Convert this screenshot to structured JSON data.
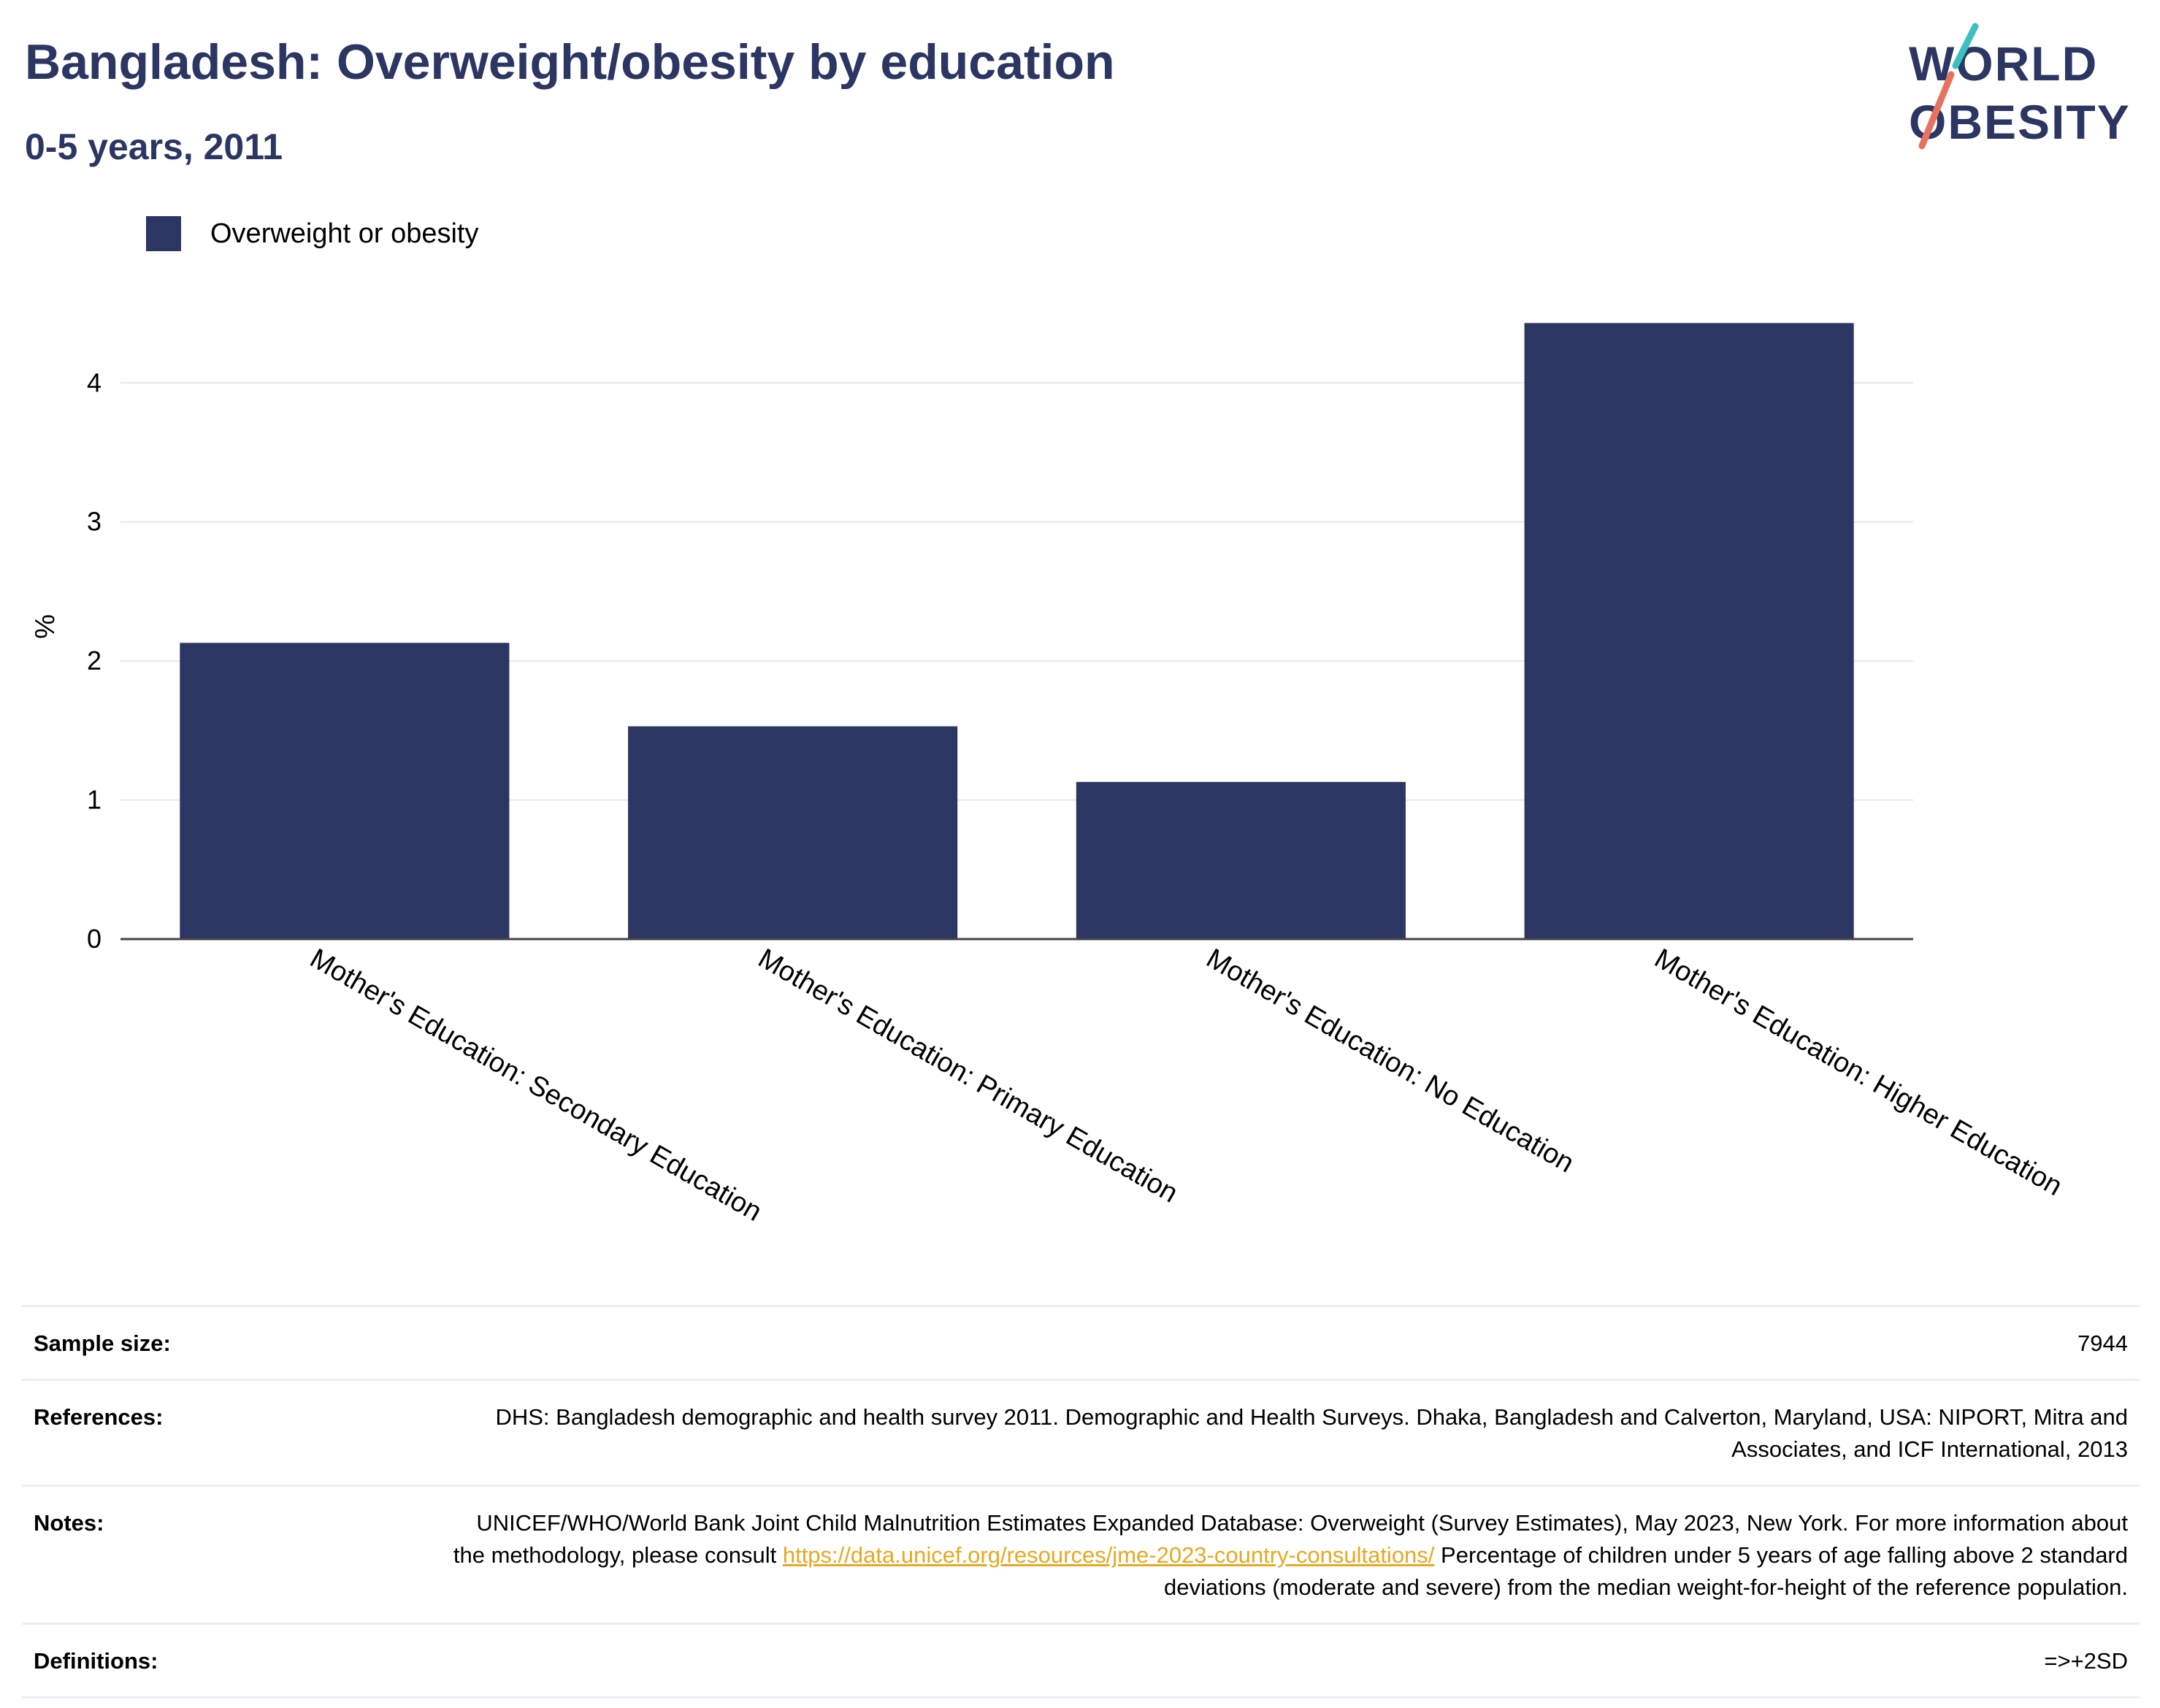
{
  "header": {
    "title": "Bangladesh: Overweight/obesity by education",
    "subtitle": "0-5 years, 2011"
  },
  "logo": {
    "line1": "WORLD",
    "line2": "OBESITY"
  },
  "colors": {
    "bar": "#2b3663",
    "title": "#2b3663",
    "grid": "#e6e6ef",
    "link": "#e8a820",
    "logo_teal": "#3cbfbf",
    "logo_coral": "#e8725f"
  },
  "chart_data": {
    "type": "bar",
    "categories": [
      "Mother's Education: Secondary Education",
      "Mother's Education: Primary Education",
      "Mother's Education: No Education",
      "Mother's Education: Higher Education"
    ],
    "series": [
      {
        "name": "Overweight or obesity",
        "values": [
          2.13,
          1.53,
          1.13,
          4.43
        ]
      }
    ],
    "ylabel": "%",
    "ylim": [
      0,
      4.6
    ],
    "yticks": [
      "0",
      "1",
      "2",
      "3",
      "4"
    ],
    "grid": true,
    "legend": "top-left"
  },
  "info": {
    "sample_size_label": "Sample size:",
    "sample_size_value": "7944",
    "references_label": "References:",
    "references_value": "DHS: Bangladesh demographic and health survey 2011. Demographic and Health Surveys. Dhaka, Bangladesh and Calverton, Maryland, USA: NIPORT, Mitra and Associates, and ICF International, 2013",
    "notes_label": "Notes:",
    "notes_text_1": "UNICEF/WHO/World Bank Joint Child Malnutrition Estimates Expanded Database: Overweight (Survey Estimates), May 2023, New York. For more information about the methodology, please consult ",
    "notes_link": "https://data.unicef.org/resources/jme-2023-country-consultations/",
    "notes_text_2": " Percentage of children under 5 years of age falling above 2 standard deviations (moderate and severe) from the median weight-for-height of the reference population.",
    "definitions_label": "Definitions:",
    "definitions_value": "=>+2SD"
  }
}
